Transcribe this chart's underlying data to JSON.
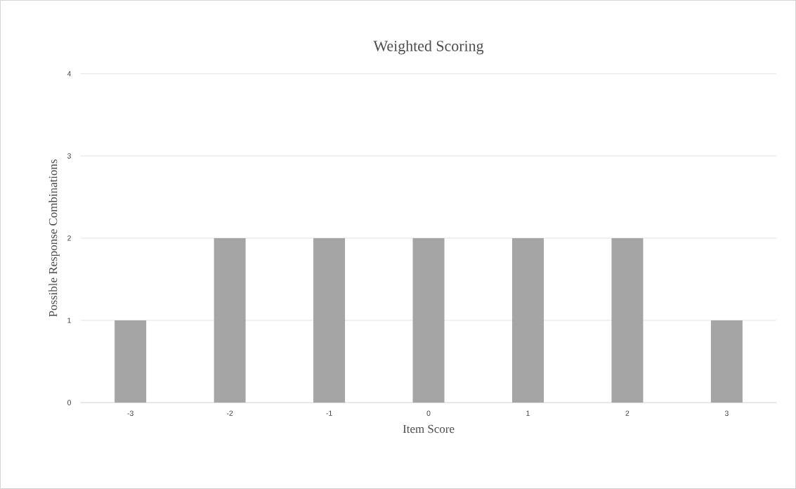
{
  "chart_data": {
    "type": "bar",
    "title": "Weighted Scoring",
    "xlabel": "Item Score",
    "ylabel": "Possible Response Combinations",
    "categories": [
      "-3",
      "-2",
      "-1",
      "0",
      "1",
      "2",
      "3"
    ],
    "values": [
      1,
      2,
      2,
      2,
      2,
      2,
      1
    ],
    "color": "#a5a5a5",
    "ylim": [
      0,
      4
    ],
    "yticks": [
      0,
      1,
      2,
      3,
      4
    ],
    "grid": "y"
  }
}
